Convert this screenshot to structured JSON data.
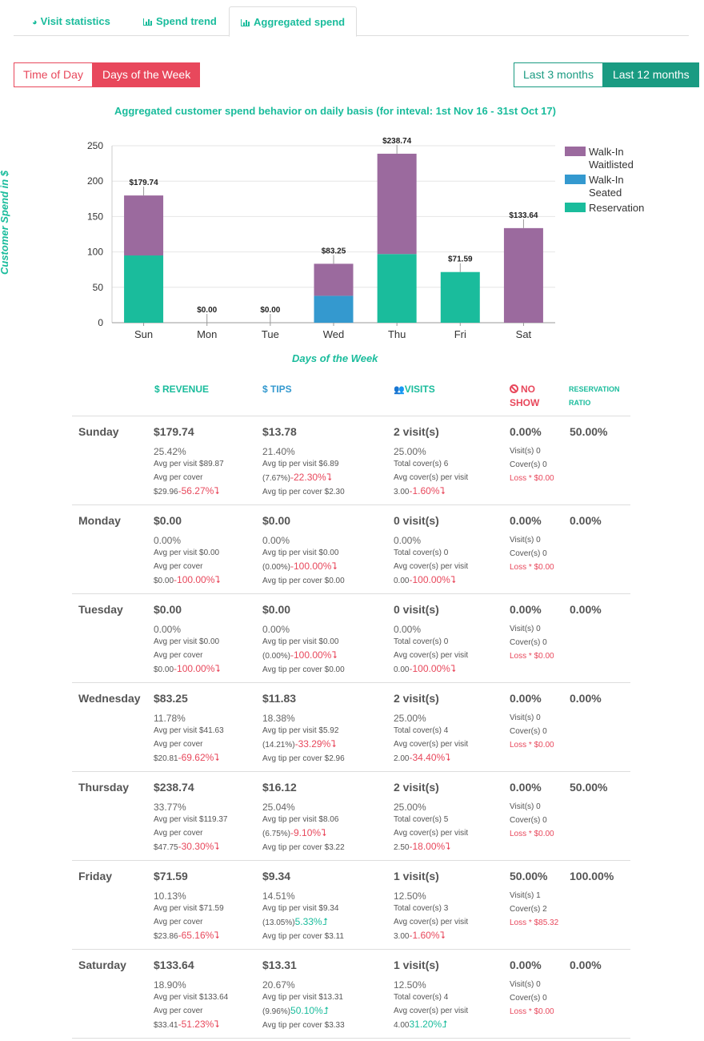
{
  "tabs": [
    {
      "label": "Visit statistics",
      "icon": "pie-chart-icon"
    },
    {
      "label": "Spend trend",
      "icon": "bar-chart-icon"
    },
    {
      "label": "Aggregated spend",
      "icon": "bar-chart-icon",
      "active": true
    }
  ],
  "view_toggle": {
    "time_of_day": "Time of Day",
    "days_of_week": "Days of the Week"
  },
  "range_toggle": {
    "last3": "Last 3 months",
    "last12": "Last 12 months"
  },
  "colors": {
    "walkin_waitlisted": "#9b6a9e",
    "walkin_seated": "#3499cf",
    "reservation": "#1abc9c",
    "negative": "#e8485c",
    "positive": "#1abc9c"
  },
  "chart_data": {
    "type": "bar",
    "stacked": true,
    "title": "Aggregated customer spend behavior on daily basis (for inteval: 1st Nov 16 - 31st Oct 17)",
    "xlabel": "Days of the Week",
    "ylabel": "Customer Spend in $",
    "ylim": [
      0,
      250
    ],
    "yticks": [
      0,
      50,
      100,
      150,
      200,
      250
    ],
    "categories": [
      "Sun",
      "Mon",
      "Tue",
      "Wed",
      "Thu",
      "Fri",
      "Sat"
    ],
    "series": [
      {
        "name": "Reservation",
        "values": [
          95.0,
          0,
          0,
          0,
          97.0,
          71.59,
          0
        ]
      },
      {
        "name": "Walk-In Seated",
        "values": [
          0,
          0,
          0,
          38.0,
          0,
          0,
          0
        ]
      },
      {
        "name": "Walk-In Waitlisted",
        "values": [
          84.74,
          0,
          0,
          45.25,
          141.74,
          0,
          133.64
        ]
      }
    ],
    "totals": [
      "$179.74",
      "$0.00",
      "$0.00",
      "$83.25",
      "$238.74",
      "$71.59",
      "$133.64"
    ],
    "totals_values": [
      179.74,
      0,
      0,
      83.25,
      238.74,
      71.59,
      133.64
    ],
    "legend": [
      "Walk-In Waitlisted",
      "Walk-In Seated",
      "Reservation"
    ],
    "legend_position": "right"
  },
  "table": {
    "headers": {
      "revenue": "$ REVENUE",
      "tips": "$ TIPS",
      "visits": "VISITS",
      "noshow": "NO SHOW",
      "reservation": "RESERVATION RATIO"
    },
    "rows": [
      {
        "day": "Sunday",
        "revenue": "$179.74",
        "rev_pct": "25.42%",
        "avg_visit": "Avg per visit $89.87",
        "avg_cover_label": "Avg per cover",
        "avg_cover": "$29.96",
        "rev_delta": "-56.27%",
        "rev_dir": "down",
        "tips": "$13.78",
        "tips_pct": "21.40%",
        "avg_tip": "Avg tip per visit $6.89",
        "tip_ratio": "(7.67%)",
        "tip_delta": "-22.30%",
        "tip_dir": "down",
        "avg_tip_cover": "Avg tip per cover $2.30",
        "visits": "2 visit(s)",
        "visits_pct": "25.00%",
        "covers": "Total cover(s) 6",
        "avg_cov_label": "Avg cover(s) per visit",
        "avg_cov": "3.00",
        "cov_delta": "-1.60%",
        "cov_dir": "down",
        "noshow": "0.00%",
        "ns_visits": "Visit(s) 0",
        "ns_covers": "Cover(s) 0",
        "ns_loss": "Loss * $0.00",
        "res_ratio": "50.00%"
      },
      {
        "day": "Monday",
        "revenue": "$0.00",
        "rev_pct": "0.00%",
        "avg_visit": "Avg per visit $0.00",
        "avg_cover_label": "Avg per cover",
        "avg_cover": "$0.00",
        "rev_delta": "-100.00%",
        "rev_dir": "down",
        "tips": "$0.00",
        "tips_pct": "0.00%",
        "avg_tip": "Avg tip per visit $0.00",
        "tip_ratio": "(0.00%)",
        "tip_delta": "-100.00%",
        "tip_dir": "down",
        "avg_tip_cover": "Avg tip per cover $0.00",
        "visits": "0 visit(s)",
        "visits_pct": "0.00%",
        "covers": "Total cover(s) 0",
        "avg_cov_label": "Avg cover(s) per visit",
        "avg_cov": "0.00",
        "cov_delta": "-100.00%",
        "cov_dir": "down",
        "noshow": "0.00%",
        "ns_visits": "Visit(s) 0",
        "ns_covers": "Cover(s) 0",
        "ns_loss": "Loss * $0.00",
        "res_ratio": "0.00%"
      },
      {
        "day": "Tuesday",
        "revenue": "$0.00",
        "rev_pct": "0.00%",
        "avg_visit": "Avg per visit $0.00",
        "avg_cover_label": "Avg per cover",
        "avg_cover": "$0.00",
        "rev_delta": "-100.00%",
        "rev_dir": "down",
        "tips": "$0.00",
        "tips_pct": "0.00%",
        "avg_tip": "Avg tip per visit $0.00",
        "tip_ratio": "(0.00%)",
        "tip_delta": "-100.00%",
        "tip_dir": "down",
        "avg_tip_cover": "Avg tip per cover $0.00",
        "visits": "0 visit(s)",
        "visits_pct": "0.00%",
        "covers": "Total cover(s) 0",
        "avg_cov_label": "Avg cover(s) per visit",
        "avg_cov": "0.00",
        "cov_delta": "-100.00%",
        "cov_dir": "down",
        "noshow": "0.00%",
        "ns_visits": "Visit(s) 0",
        "ns_covers": "Cover(s) 0",
        "ns_loss": "Loss * $0.00",
        "res_ratio": "0.00%"
      },
      {
        "day": "Wednesday",
        "revenue": "$83.25",
        "rev_pct": "11.78%",
        "avg_visit": "Avg per visit $41.63",
        "avg_cover_label": "Avg per cover",
        "avg_cover": "$20.81",
        "rev_delta": "-69.62%",
        "rev_dir": "down",
        "tips": "$11.83",
        "tips_pct": "18.38%",
        "avg_tip": "Avg tip per visit $5.92",
        "tip_ratio": "(14.21%)",
        "tip_delta": "-33.29%",
        "tip_dir": "down",
        "avg_tip_cover": "Avg tip per cover $2.96",
        "visits": "2 visit(s)",
        "visits_pct": "25.00%",
        "covers": "Total cover(s) 4",
        "avg_cov_label": "Avg cover(s) per visit",
        "avg_cov": "2.00",
        "cov_delta": "-34.40%",
        "cov_dir": "down",
        "noshow": "0.00%",
        "ns_visits": "Visit(s) 0",
        "ns_covers": "Cover(s) 0",
        "ns_loss": "Loss * $0.00",
        "res_ratio": "0.00%"
      },
      {
        "day": "Thursday",
        "revenue": "$238.74",
        "rev_pct": "33.77%",
        "avg_visit": "Avg per visit $119.37",
        "avg_cover_label": "Avg per cover",
        "avg_cover": "$47.75",
        "rev_delta": "-30.30%",
        "rev_dir": "down",
        "tips": "$16.12",
        "tips_pct": "25.04%",
        "avg_tip": "Avg tip per visit $8.06",
        "tip_ratio": "(6.75%)",
        "tip_delta": "-9.10%",
        "tip_dir": "down",
        "avg_tip_cover": "Avg tip per cover $3.22",
        "visits": "2 visit(s)",
        "visits_pct": "25.00%",
        "covers": "Total cover(s) 5",
        "avg_cov_label": "Avg cover(s) per visit",
        "avg_cov": "2.50",
        "cov_delta": "-18.00%",
        "cov_dir": "down",
        "noshow": "0.00%",
        "ns_visits": "Visit(s) 0",
        "ns_covers": "Cover(s) 0",
        "ns_loss": "Loss * $0.00",
        "res_ratio": "50.00%"
      },
      {
        "day": "Friday",
        "revenue": "$71.59",
        "rev_pct": "10.13%",
        "avg_visit": "Avg per visit $71.59",
        "avg_cover_label": "Avg per cover",
        "avg_cover": "$23.86",
        "rev_delta": "-65.16%",
        "rev_dir": "down",
        "tips": "$9.34",
        "tips_pct": "14.51%",
        "avg_tip": "Avg tip per visit $9.34",
        "tip_ratio": "(13.05%)",
        "tip_delta": "5.33%",
        "tip_dir": "up",
        "avg_tip_cover": "Avg tip per cover $3.11",
        "visits": "1 visit(s)",
        "visits_pct": "12.50%",
        "covers": "Total cover(s) 3",
        "avg_cov_label": "Avg cover(s) per visit",
        "avg_cov": "3.00",
        "cov_delta": "-1.60%",
        "cov_dir": "down",
        "noshow": "50.00%",
        "ns_visits": "Visit(s) 1",
        "ns_covers": "Cover(s) 2",
        "ns_loss": "Loss * $85.32",
        "res_ratio": "100.00%"
      },
      {
        "day": "Saturday",
        "revenue": "$133.64",
        "rev_pct": "18.90%",
        "avg_visit": "Avg per visit $133.64",
        "avg_cover_label": "Avg per cover",
        "avg_cover": "$33.41",
        "rev_delta": "-51.23%",
        "rev_dir": "down",
        "tips": "$13.31",
        "tips_pct": "20.67%",
        "avg_tip": "Avg tip per visit $13.31",
        "tip_ratio": "(9.96%)",
        "tip_delta": "50.10%",
        "tip_dir": "up",
        "avg_tip_cover": "Avg tip per cover $3.33",
        "visits": "1 visit(s)",
        "visits_pct": "12.50%",
        "covers": "Total cover(s) 4",
        "avg_cov_label": "Avg cover(s) per visit",
        "avg_cov": "4.00",
        "cov_delta": "31.20%",
        "cov_dir": "up",
        "noshow": "0.00%",
        "ns_visits": "Visit(s) 0",
        "ns_covers": "Cover(s) 0",
        "ns_loss": "Loss * $0.00",
        "res_ratio": "0.00%"
      }
    ]
  }
}
